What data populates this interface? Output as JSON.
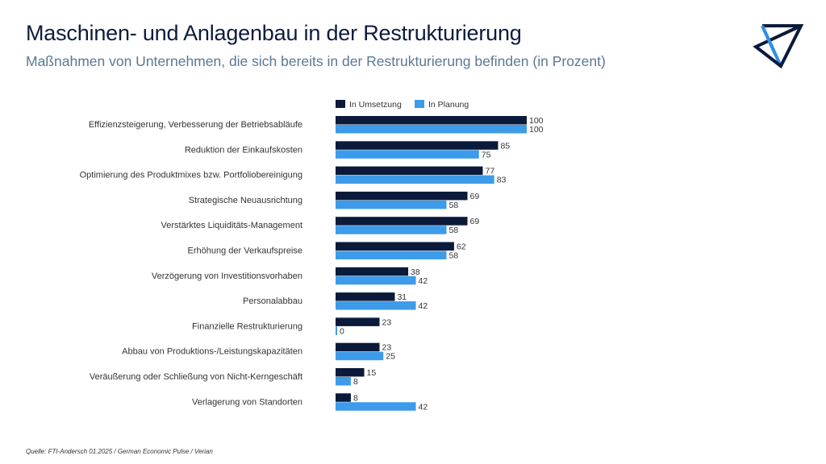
{
  "header": {
    "title": "Maschinen- und Anlagenbau in der Restrukturierung",
    "subtitle": "Maßnahmen von Unternehmen, die sich bereits in der Restrukturierung befinden (in Prozent)",
    "logo_icon": "triangle-logo-icon"
  },
  "footer": {
    "source": "Quelle: FTI-Andersch 01.2025 / German Economic Pulse / Verian"
  },
  "colors": {
    "dark": "#0b1a3a",
    "light": "#3d9be9"
  },
  "chart_data": {
    "type": "bar",
    "orientation": "horizontal",
    "legend_position": "top",
    "grid": false,
    "xlim": [
      0,
      100
    ],
    "categories": [
      "Effizienzsteigerung, Verbesserung der Betriebsabläufe",
      "Reduktion der Einkaufskosten",
      "Optimierung des Produktmixes bzw. Portfoliobereinigung",
      "Strategische Neuausrichtung",
      "Verstärktes Liquiditäts-Management",
      "Erhöhung der Verkaufspreise",
      "Verzögerung von Investitionsvorhaben",
      "Personalabbau",
      "Finanzielle Restrukturierung",
      "Abbau von Produktions-/Leistungskapazitäten",
      "Veräußerung oder Schließung von Nicht-Kerngeschäft",
      "Verlagerung von Standorten"
    ],
    "series": [
      {
        "name": "In Umsetzung",
        "color": "#0b1a3a",
        "values": [
          100,
          85,
          77,
          69,
          69,
          62,
          38,
          31,
          23,
          23,
          15,
          8
        ]
      },
      {
        "name": "In Planung",
        "color": "#3d9be9",
        "values": [
          100,
          75,
          83,
          58,
          58,
          58,
          42,
          42,
          0,
          25,
          8,
          42
        ]
      }
    ]
  }
}
